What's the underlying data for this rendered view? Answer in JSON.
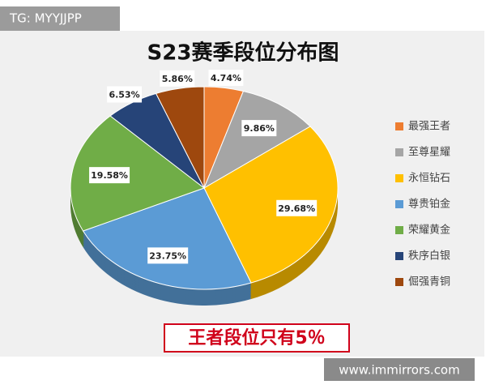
{
  "watermark": "TG: MYYJJPP",
  "footer_url": "www.immirrors.com",
  "chart_data": {
    "type": "pie",
    "title": "S23赛季段位分布图",
    "subtitle": "王者段位只有5％",
    "categories": [
      "最强王者",
      "至尊星耀",
      "永恒钻石",
      "尊贵铂金",
      "荣耀黄金",
      "秩序白银",
      "倔强青铜"
    ],
    "values": [
      4.74,
      9.86,
      29.68,
      23.75,
      19.58,
      6.53,
      5.86
    ],
    "value_labels": [
      "4.74%",
      "9.86%",
      "29.68%",
      "23.75%",
      "19.58%",
      "6.53%",
      "5.86%"
    ],
    "colors": [
      "#ed7d31",
      "#a5a5a5",
      "#ffc000",
      "#5b9bd5",
      "#70ad47",
      "#264478",
      "#9e480e"
    ],
    "legend": "right"
  }
}
